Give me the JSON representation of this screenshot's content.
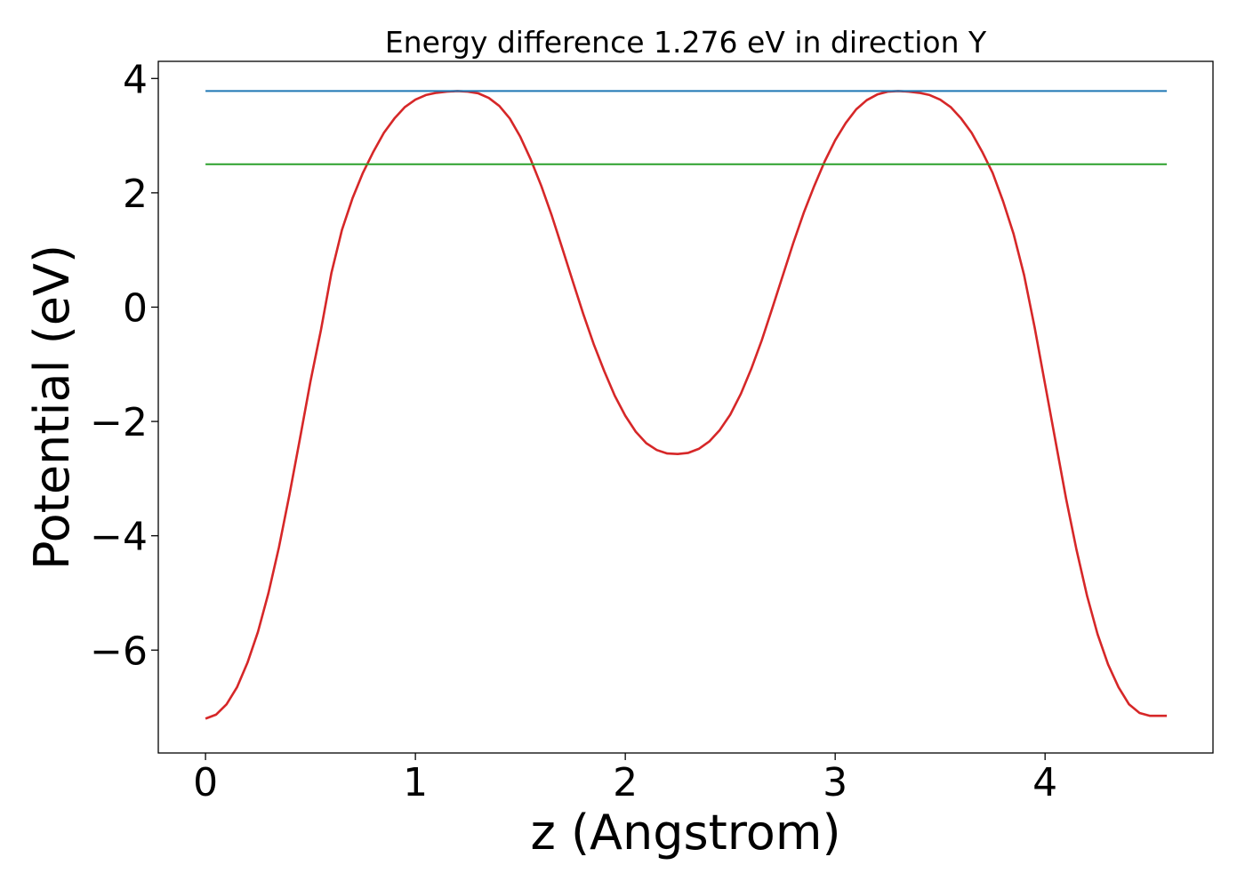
{
  "chart_data": {
    "type": "line",
    "title": "Energy difference 1.276 eV in direction Y",
    "xlabel": "z (Angstrom)",
    "ylabel": "Potential (eV)",
    "xlim": [
      -0.225,
      4.8
    ],
    "ylim": [
      -7.8,
      4.3
    ],
    "xticks": [
      0,
      1,
      2,
      3,
      4
    ],
    "xtick_labels": [
      "0",
      "1",
      "2",
      "3",
      "4"
    ],
    "yticks": [
      4,
      2,
      0,
      -2,
      -4,
      -6
    ],
    "ytick_labels": [
      "4",
      "2",
      "0",
      "−2",
      "−4",
      "−6"
    ],
    "grid": false,
    "series": [
      {
        "color": "#d62728",
        "x": [
          0.0,
          0.05,
          0.1,
          0.15,
          0.2,
          0.25,
          0.3,
          0.35,
          0.4,
          0.45,
          0.5,
          0.55,
          0.6,
          0.65,
          0.7,
          0.75,
          0.8,
          0.85,
          0.9,
          0.95,
          1.0,
          1.05,
          1.1,
          1.15,
          1.2,
          1.25,
          1.3,
          1.35,
          1.4,
          1.45,
          1.5,
          1.55,
          1.6,
          1.65,
          1.7,
          1.75,
          1.8,
          1.85,
          1.9,
          1.95,
          2.0,
          2.05,
          2.1,
          2.15,
          2.2,
          2.25,
          2.3,
          2.35,
          2.4,
          2.45,
          2.5,
          2.55,
          2.6,
          2.65,
          2.7,
          2.75,
          2.8,
          2.85,
          2.9,
          2.95,
          3.0,
          3.05,
          3.1,
          3.15,
          3.2,
          3.25,
          3.3,
          3.35,
          3.4,
          3.45,
          3.5,
          3.55,
          3.6,
          3.65,
          3.7,
          3.75,
          3.8,
          3.85,
          3.9,
          3.95,
          4.0,
          4.05,
          4.1,
          4.15,
          4.2,
          4.25,
          4.3,
          4.35,
          4.4,
          4.45,
          4.5,
          4.55,
          4.58
        ],
        "y": [
          -7.2,
          -7.13,
          -6.95,
          -6.65,
          -6.22,
          -5.68,
          -5.0,
          -4.2,
          -3.28,
          -2.3,
          -1.3,
          -0.4,
          0.6,
          1.35,
          1.9,
          2.35,
          2.72,
          3.05,
          3.3,
          3.5,
          3.63,
          3.71,
          3.75,
          3.77,
          3.78,
          3.77,
          3.74,
          3.66,
          3.52,
          3.3,
          2.98,
          2.58,
          2.12,
          1.6,
          1.03,
          0.45,
          -0.12,
          -0.65,
          -1.12,
          -1.55,
          -1.9,
          -2.18,
          -2.38,
          -2.5,
          -2.56,
          -2.57,
          -2.55,
          -2.48,
          -2.35,
          -2.15,
          -1.88,
          -1.52,
          -1.08,
          -0.58,
          -0.02,
          0.55,
          1.12,
          1.65,
          2.12,
          2.55,
          2.92,
          3.22,
          3.46,
          3.62,
          3.72,
          3.77,
          3.78,
          3.77,
          3.75,
          3.71,
          3.63,
          3.5,
          3.3,
          3.05,
          2.72,
          2.35,
          1.85,
          1.28,
          0.56,
          -0.35,
          -1.35,
          -2.35,
          -3.35,
          -4.25,
          -5.05,
          -5.72,
          -6.25,
          -6.65,
          -6.95,
          -7.1,
          -7.15,
          -7.15,
          -7.15
        ]
      },
      {
        "color": "#1f77b4",
        "x": [
          0.0,
          4.58
        ],
        "y": [
          3.78,
          3.78
        ]
      },
      {
        "color": "#2ca02c",
        "x": [
          0.0,
          4.58
        ],
        "y": [
          2.5,
          2.5
        ]
      }
    ]
  }
}
